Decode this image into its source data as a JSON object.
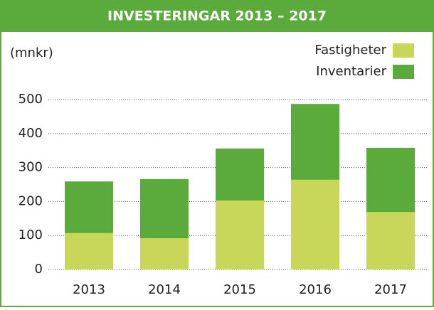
{
  "chart_data": {
    "type": "stacked-bar",
    "title": "INVESTERINGAR 2013 – 2017",
    "y_label": "(mnkr)",
    "categories": [
      "2013",
      "2014",
      "2015",
      "2016",
      "2017"
    ],
    "series": [
      {
        "name": "Fastigheter",
        "color": "#c8d65a",
        "values": [
          107,
          92,
          203,
          264,
          169
        ]
      },
      {
        "name": "Inventarier",
        "color": "#5aaa3c",
        "values": [
          152,
          174,
          153,
          223,
          189
        ]
      }
    ],
    "ylim": [
      0,
      500
    ],
    "yticks": [
      0,
      100,
      200,
      300,
      400,
      500
    ],
    "grid": true,
    "legend": "top-right"
  }
}
